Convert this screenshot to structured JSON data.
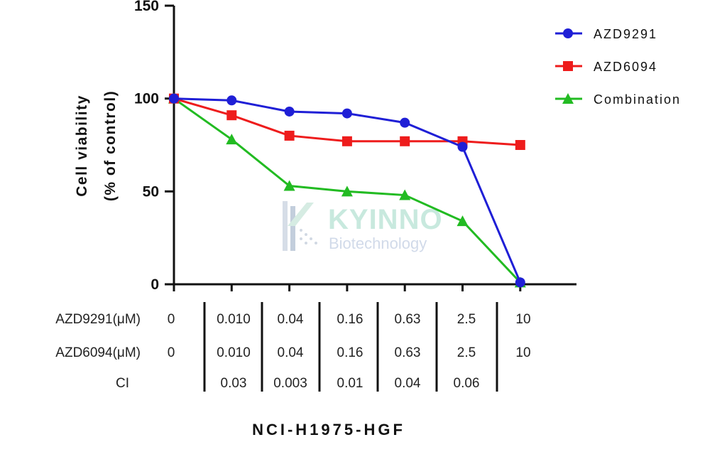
{
  "chart_data": {
    "type": "line",
    "ylabel_line1": "Cell viability",
    "ylabel_line2": "(% of control)",
    "ylim": [
      0,
      150
    ],
    "yticks": [
      "0",
      "50",
      "100",
      "150"
    ],
    "x_count": 7,
    "legend_position": "top-right",
    "grid": false,
    "series": [
      {
        "name": "AZD9291",
        "marker": "circle",
        "color": "#1f1fd6",
        "values": [
          100,
          99,
          93,
          92,
          87,
          74,
          1
        ]
      },
      {
        "name": "AZD6094",
        "marker": "square",
        "color": "#ee1c1c",
        "values": [
          100,
          91,
          80,
          77,
          77,
          77,
          75
        ]
      },
      {
        "name": "Combination",
        "marker": "triangle",
        "color": "#22bb22",
        "values": [
          100,
          78,
          53,
          50,
          48,
          34,
          1
        ]
      }
    ],
    "dose_table": {
      "rows": [
        {
          "label": "AZD9291(μM)",
          "values": [
            "0",
            "0.010",
            "0.04",
            "0.16",
            "0.63",
            "2.5",
            "10"
          ]
        },
        {
          "label": "AZD6094(μM)",
          "values": [
            "0",
            "0.010",
            "0.04",
            "0.16",
            "0.63",
            "2.5",
            "10"
          ]
        },
        {
          "label": "CI",
          "values": [
            "",
            "0.03",
            "0.003",
            "0.01",
            "0.04",
            "0.06",
            ""
          ]
        }
      ]
    },
    "caption": "NCI-H1975-HGF"
  },
  "watermark": {
    "brand": "KYINNO",
    "sub": "Biotechnology"
  }
}
